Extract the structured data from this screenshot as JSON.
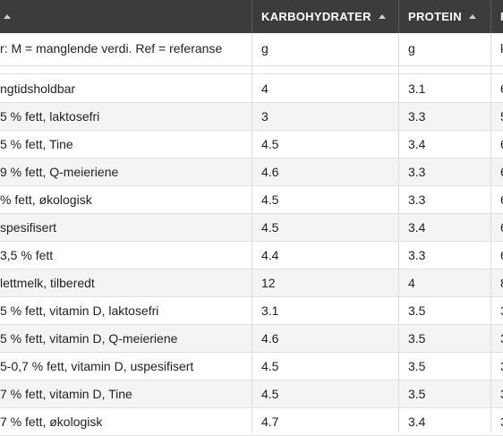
{
  "header": {
    "columns": [
      {
        "label": ""
      },
      {
        "label": "KARBOHYDRATER"
      },
      {
        "label": "PROTEIN"
      },
      {
        "label": "F"
      }
    ]
  },
  "units_row": [
    "r: M = manglende verdi. Ref = referanse",
    "g",
    "g",
    "k"
  ],
  "rows": [
    [
      "ngtidsholdbar",
      "4",
      "3.1",
      "6"
    ],
    [
      "5 % fett, laktosefri",
      "3",
      "3.3",
      "5"
    ],
    [
      "5 % fett, Tine",
      "4.5",
      "3.4",
      "6"
    ],
    [
      "9 % fett, Q-meieriene",
      "4.6",
      "3.3",
      "6"
    ],
    [
      " % fett, økologisk",
      "4.5",
      "3.3",
      "6"
    ],
    [
      "spesifisert",
      "4.5",
      "3.4",
      "6"
    ],
    [
      "3,5 % fett",
      "4.4",
      "3.3",
      "6"
    ],
    [
      " lettmelk, tilberedt",
      "12",
      "4",
      "8"
    ],
    [
      "5 % fett, vitamin D, laktosefri",
      "3.1",
      "3.5",
      "3"
    ],
    [
      "5 % fett, vitamin D, Q-meieriene",
      "4.6",
      "3.5",
      "3"
    ],
    [
      "5-0,7 % fett, vitamin D, uspesifisert",
      "4.5",
      "3.5",
      "3"
    ],
    [
      "7 % fett, vitamin D, Tine",
      "4.5",
      "3.5",
      "3"
    ],
    [
      "7 % fett, økologisk",
      "4.7",
      "3.4",
      "3"
    ]
  ]
}
